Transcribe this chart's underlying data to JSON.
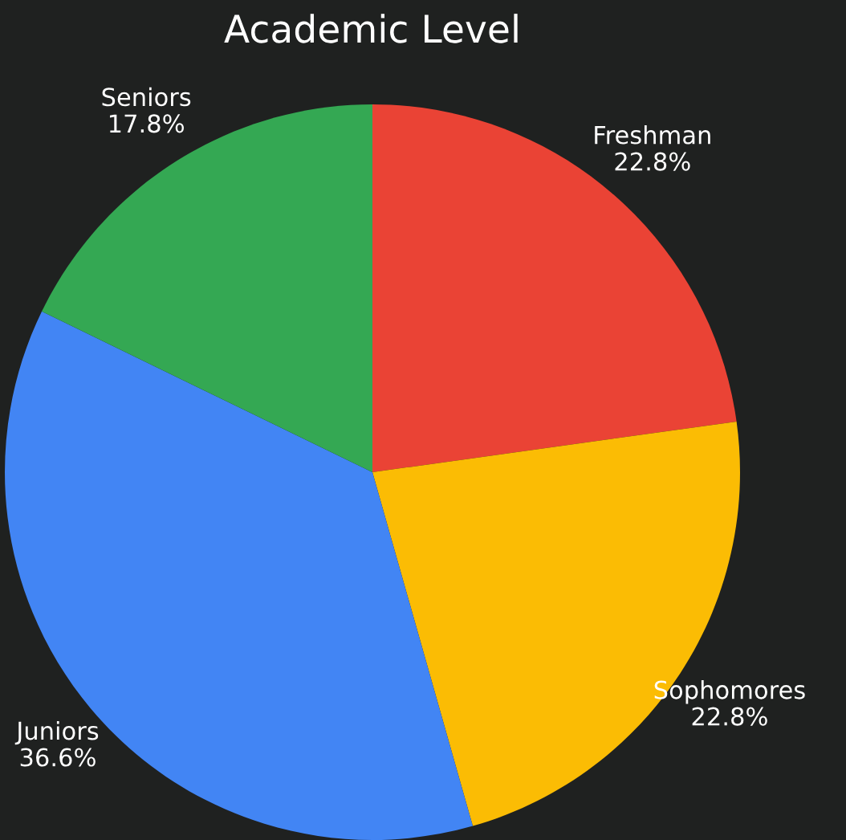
{
  "chart_data": {
    "type": "pie",
    "title": "Academic Level",
    "categories": [
      "Freshman",
      "Sophomores",
      "Juniors",
      "Seniors"
    ],
    "values": [
      22.8,
      22.8,
      36.6,
      17.8
    ],
    "colors": [
      "#ea4335",
      "#fbbc04",
      "#4285f4",
      "#34a853"
    ],
    "value_labels": [
      "22.8%",
      "22.8%",
      "36.6%",
      "17.8%"
    ]
  }
}
